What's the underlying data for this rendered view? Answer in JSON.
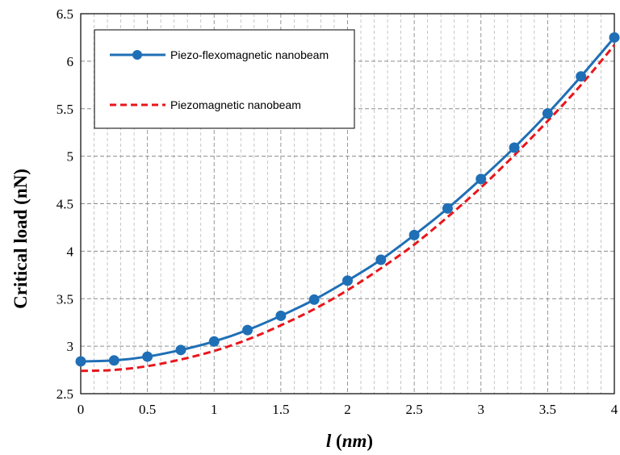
{
  "chart_data": {
    "type": "line",
    "title": "",
    "xlabel": "l (nm)",
    "xlabel_var": "l",
    "xlabel_unit": "nm",
    "ylabel": "Critical load (nN)",
    "xlim": [
      0,
      4
    ],
    "ylim": [
      2.5,
      6.5
    ],
    "xticks": [
      "0",
      "0.5",
      "1",
      "1.5",
      "2",
      "2.5",
      "3",
      "3.5",
      "4"
    ],
    "yticks": [
      "2.5",
      "3",
      "3.5",
      "4",
      "4.5",
      "5",
      "5.5",
      "6",
      "6.5"
    ],
    "grid": true,
    "legend_position": "top-left",
    "x": [
      0,
      0.25,
      0.5,
      0.75,
      1,
      1.25,
      1.5,
      1.75,
      2,
      2.25,
      2.5,
      2.75,
      3,
      3.25,
      3.5,
      3.75,
      4
    ],
    "series": [
      {
        "name": "Piezo-flexomagnetic nanobeam",
        "color": "#1f6fb6",
        "style": "solid-markers",
        "values": [
          2.84,
          2.85,
          2.89,
          2.96,
          3.05,
          3.17,
          3.32,
          3.49,
          3.69,
          3.91,
          4.17,
          4.45,
          4.76,
          5.09,
          5.45,
          5.84,
          6.25
        ]
      },
      {
        "name": "Piezomagnetic nanobeam",
        "color": "#e8161b",
        "style": "dashed",
        "values": [
          2.74,
          2.75,
          2.79,
          2.86,
          2.95,
          3.07,
          3.22,
          3.39,
          3.59,
          3.82,
          4.07,
          4.36,
          4.67,
          5.01,
          5.37,
          5.75,
          6.17
        ]
      }
    ]
  }
}
